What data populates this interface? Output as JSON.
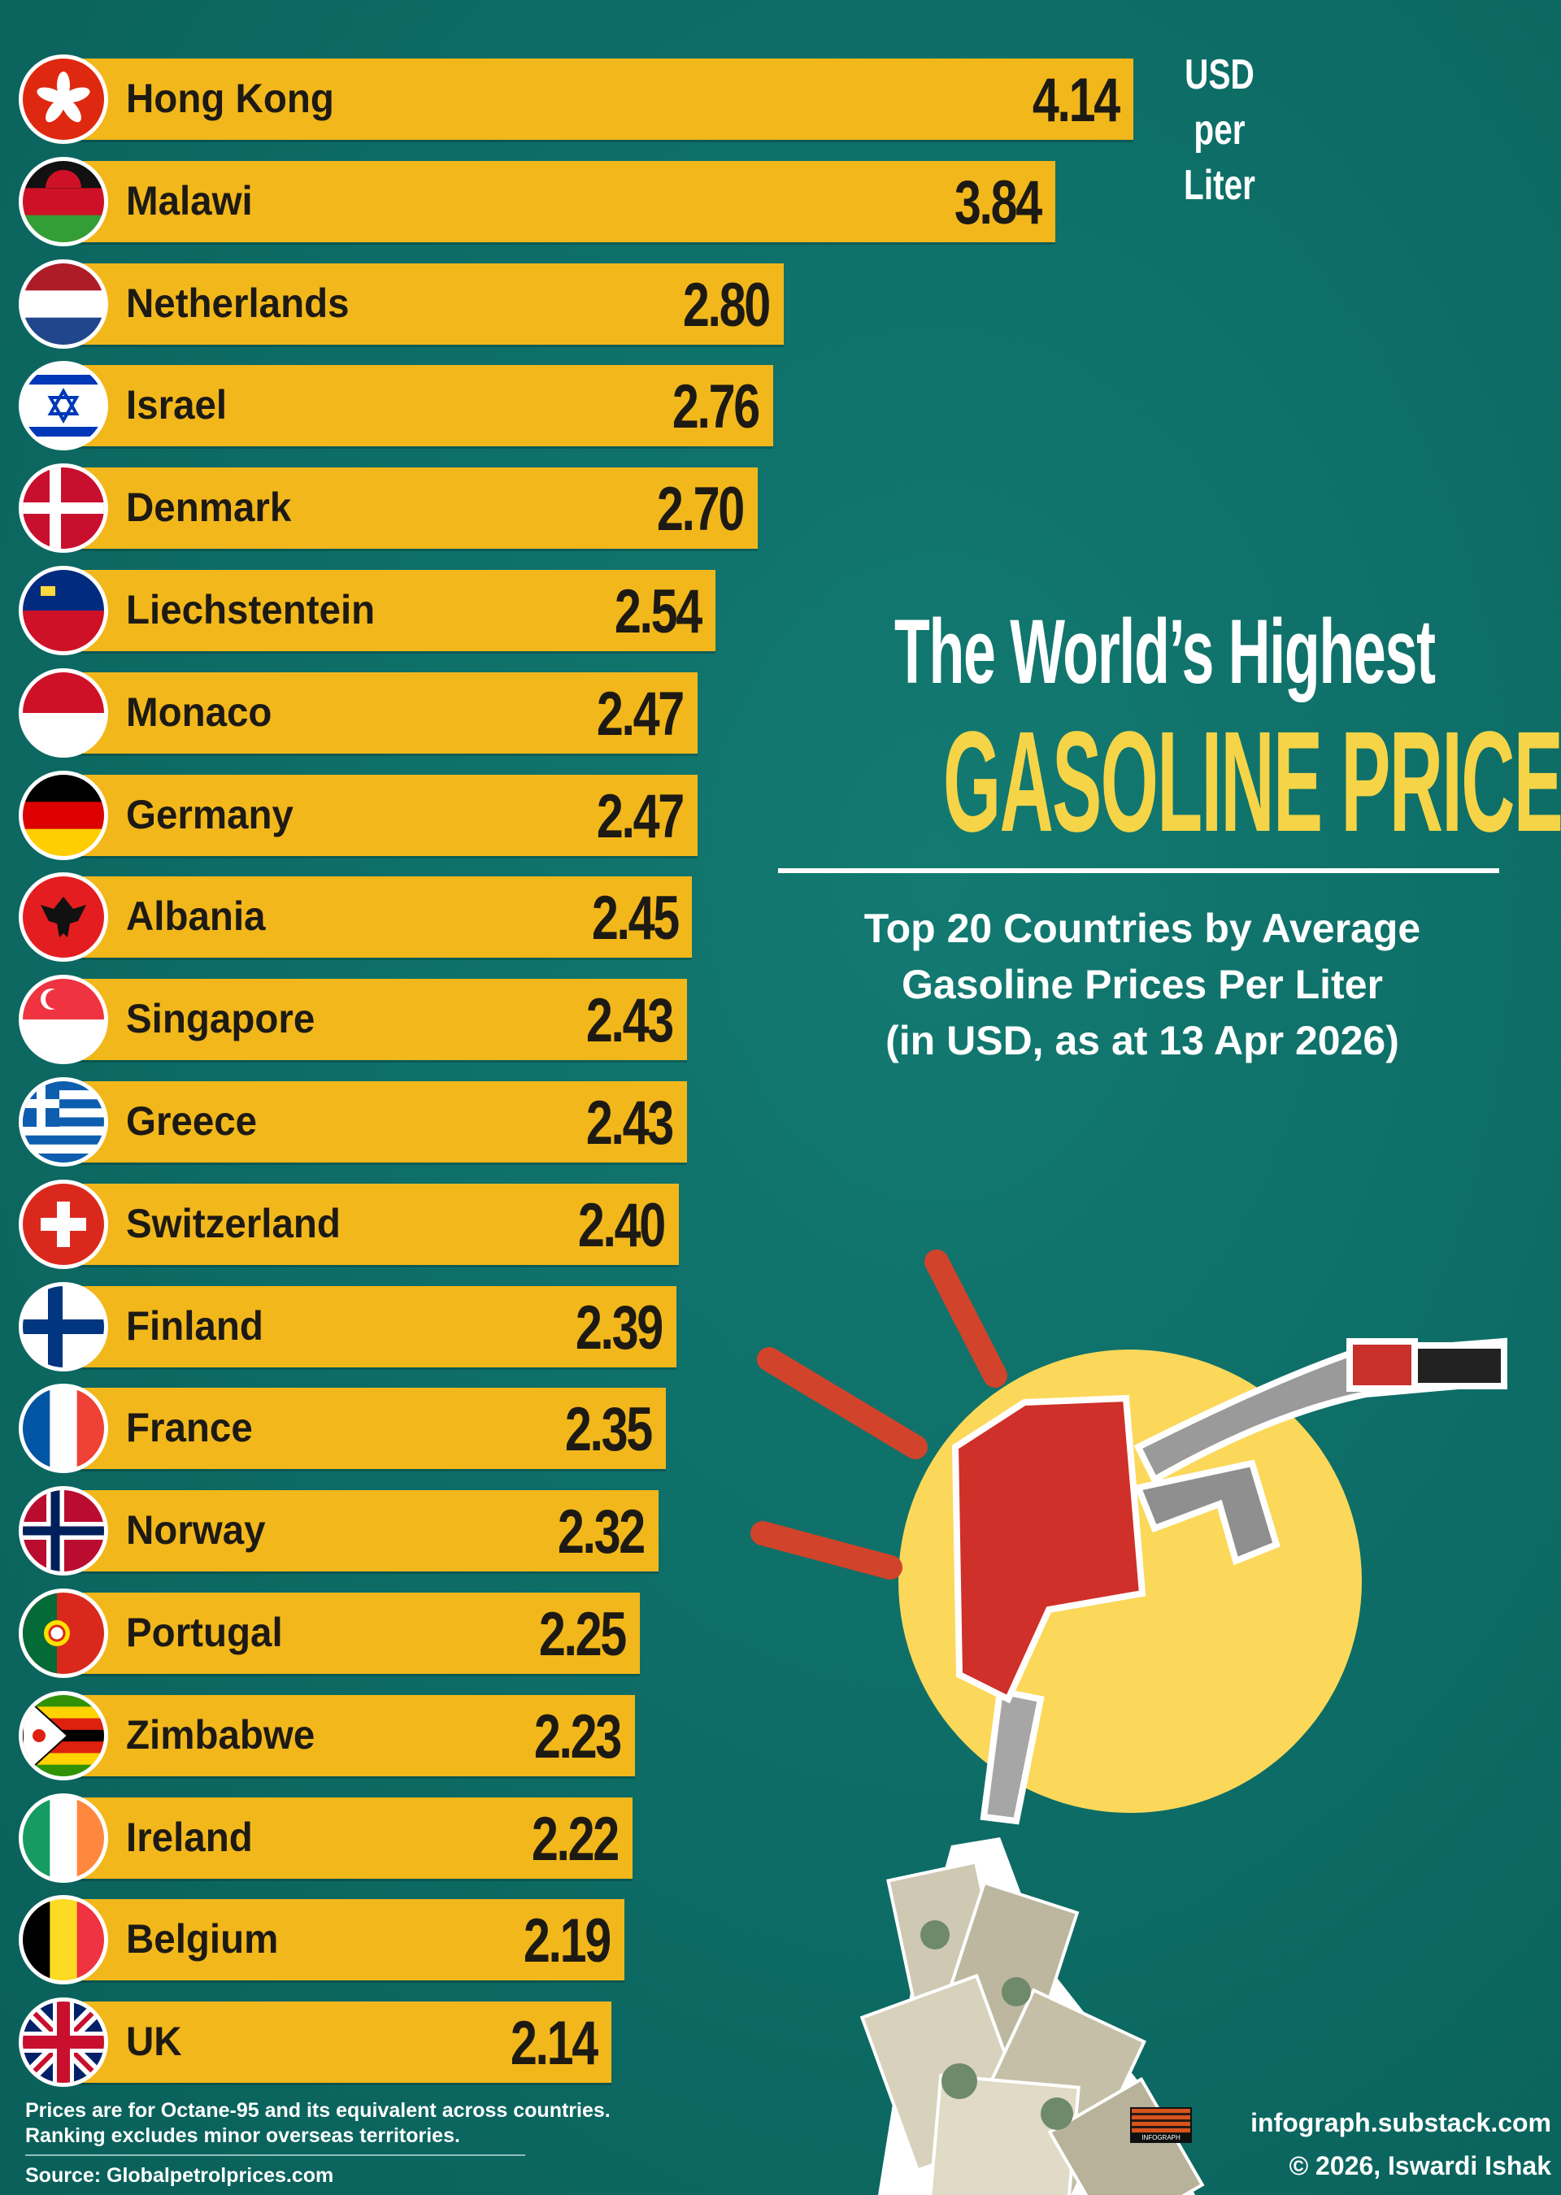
{
  "header": {
    "unit_line1": "USD per",
    "unit_line2": "Liter",
    "title_line1": "The World’s Highest",
    "title_line2": "GASOLINE PRICES",
    "subtitle_lines": [
      "Top 20 Countries by Average",
      "Gasoline Prices Per Liter",
      "(in USD, as at 13 Apr 2026)"
    ]
  },
  "footer": {
    "note_line1": "Prices are for Octane-95 and its equivalent across countries.",
    "note_line2": "Ranking excludes minor overseas territories.",
    "source": "Source: Globalpetrolprices.com",
    "website": "infograph.substack.com",
    "copyright": "© 2026, Iswardi Ishak",
    "logo_text": "INFOGRAPH"
  },
  "colors": {
    "background": "#0d6d66",
    "bar": "#f2b71b",
    "title_accent": "#f6d447",
    "ray": "#d1432b",
    "sun": "#fbd85a"
  },
  "chart_data": {
    "type": "bar",
    "orientation": "horizontal",
    "title": "The World’s Highest GASOLINE PRICES",
    "subtitle": "Top 20 Countries by Average Gasoline Prices Per Liter (in USD, as at 13 Apr 2026)",
    "unit": "USD per Liter",
    "categories": [
      "Hong Kong",
      "Malawi",
      "Netherlands",
      "Israel",
      "Denmark",
      "Liechstentein",
      "Monaco",
      "Germany",
      "Albania",
      "Singapore",
      "Greece",
      "Switzerland",
      "Finland",
      "France",
      "Norway",
      "Portugal",
      "Zimbabwe",
      "Ireland",
      "Belgium",
      "UK"
    ],
    "values": [
      "4.14",
      "3.84",
      "2.80",
      "2.76",
      "2.70",
      "2.54",
      "2.47",
      "2.47",
      "2.45",
      "2.43",
      "2.43",
      "2.40",
      "2.39",
      "2.35",
      "2.32",
      "2.25",
      "2.23",
      "2.22",
      "2.19",
      "2.14"
    ],
    "xlim": [
      0,
      4.14
    ],
    "grid": false
  }
}
